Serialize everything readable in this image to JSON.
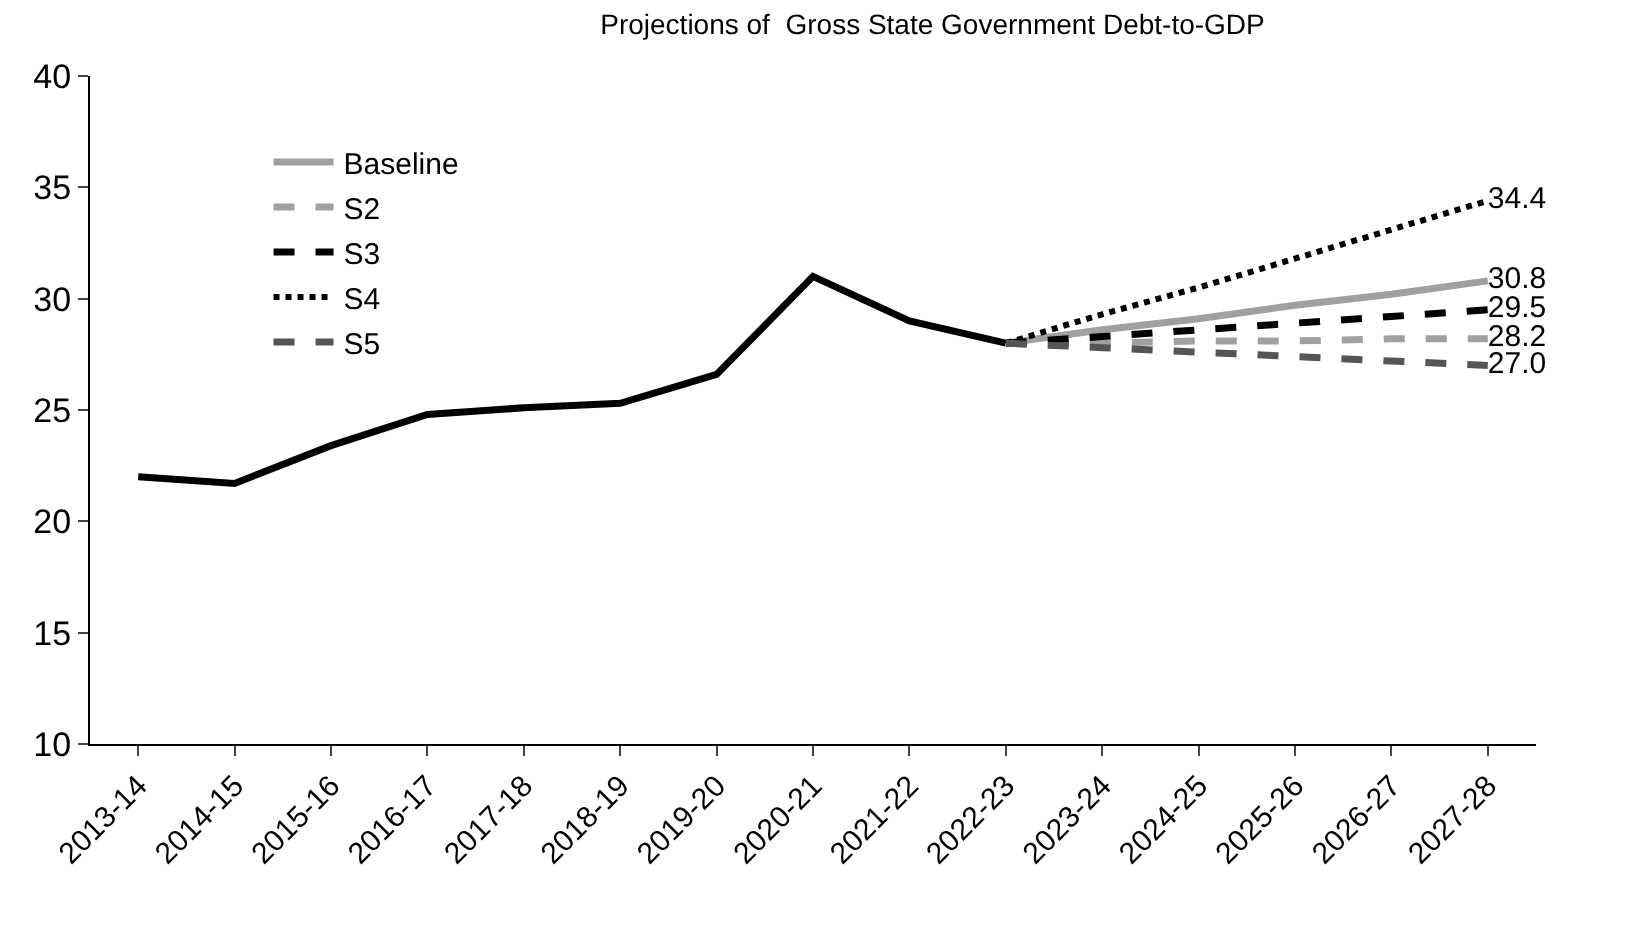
{
  "chart_data": {
    "type": "line",
    "title": "Projections of  Gross State Government Debt-to-GDP",
    "categories": [
      "2013-14",
      "2014-15",
      "2015-16",
      "2016-17",
      "2017-18",
      "2018-19",
      "2019-20",
      "2020-21",
      "2021-22",
      "2022-23",
      "2023-24",
      "2024-25",
      "2025-26",
      "2026-27",
      "2027-28"
    ],
    "series": [
      {
        "color": "#000000",
        "line_style": "solid",
        "values": [
          22.0,
          21.7,
          23.4,
          24.8,
          25.1,
          25.3,
          26.6,
          31.0,
          29.0,
          28.0,
          null,
          null,
          null,
          null,
          null
        ]
      },
      {
        "name": "Baseline",
        "color": "#a0a0a0",
        "line_style": "solid",
        "values": [
          null,
          null,
          null,
          null,
          null,
          null,
          null,
          null,
          null,
          28.0,
          28.6,
          29.1,
          29.7,
          30.2,
          30.8
        ],
        "value_labels": [
          null,
          null,
          null,
          null,
          null,
          null,
          null,
          null,
          null,
          null,
          null,
          null,
          null,
          null,
          "30.8"
        ]
      },
      {
        "name": "S2",
        "color": "#a0a0a0",
        "line_style": "dashed",
        "values": [
          null,
          null,
          null,
          null,
          null,
          null,
          null,
          null,
          null,
          28.0,
          28.0,
          28.1,
          28.1,
          28.2,
          28.2
        ],
        "value_labels": [
          null,
          null,
          null,
          null,
          null,
          null,
          null,
          null,
          null,
          null,
          null,
          null,
          null,
          null,
          "28.2"
        ]
      },
      {
        "name": "S3",
        "color": "#000000",
        "line_style": "dashed",
        "values": [
          null,
          null,
          null,
          null,
          null,
          null,
          null,
          null,
          null,
          28.0,
          28.3,
          28.6,
          28.9,
          29.2,
          29.5
        ],
        "value_labels": [
          null,
          null,
          null,
          null,
          null,
          null,
          null,
          null,
          null,
          null,
          null,
          null,
          null,
          null,
          "29.5"
        ]
      },
      {
        "name": "S4",
        "color": "#000000",
        "line_style": "dotted",
        "values": [
          null,
          null,
          null,
          null,
          null,
          null,
          null,
          null,
          null,
          28.0,
          29.3,
          30.5,
          31.8,
          33.1,
          34.4
        ],
        "value_labels": [
          null,
          null,
          null,
          null,
          null,
          null,
          null,
          null,
          null,
          null,
          null,
          null,
          null,
          null,
          "34.4"
        ]
      },
      {
        "name": "S5",
        "color": "#555555",
        "line_style": "dashed",
        "values": [
          null,
          null,
          null,
          null,
          null,
          null,
          null,
          null,
          null,
          28.0,
          27.8,
          27.6,
          27.4,
          27.2,
          27.0
        ],
        "value_labels": [
          null,
          null,
          null,
          null,
          null,
          null,
          null,
          null,
          null,
          null,
          null,
          null,
          null,
          null,
          "27.0"
        ]
      }
    ],
    "ylim": [
      10,
      40
    ],
    "yticks": [
      10,
      15,
      20,
      25,
      30,
      35,
      40
    ],
    "legend": "top left",
    "marker": "none"
  }
}
